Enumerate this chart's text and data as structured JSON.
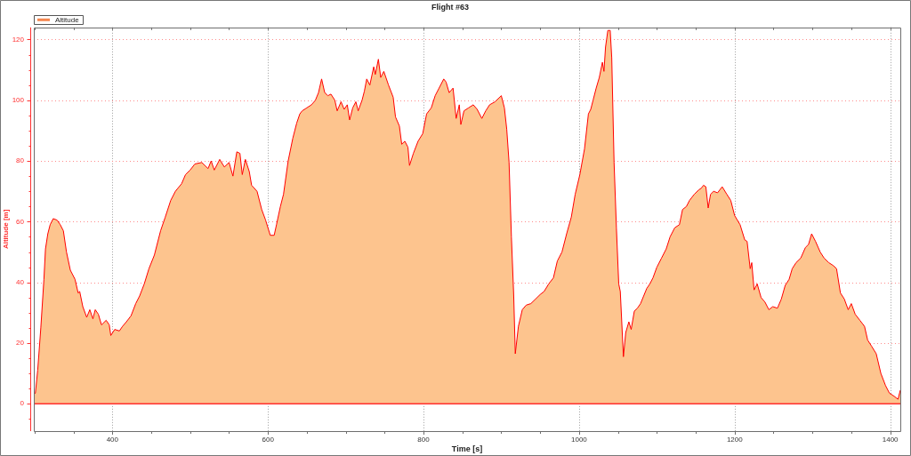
{
  "chart_data": {
    "type": "area",
    "title": "Flight #63",
    "xlabel": "Time [s]",
    "ylabel": "Altitude [m]",
    "legend": "top left",
    "grid": true,
    "xlim": [
      299,
      1413
    ],
    "ylim": [
      -9,
      124
    ],
    "xticks": [
      {
        "value": 300,
        "label": null
      },
      {
        "value": 350,
        "label": null
      },
      400,
      {
        "value": 450,
        "label": null
      },
      {
        "value": 500,
        "label": null
      },
      {
        "value": 550,
        "label": null
      },
      600,
      {
        "value": 650,
        "label": null
      },
      {
        "value": 700,
        "label": null
      },
      {
        "value": 750,
        "label": null
      },
      800,
      {
        "value": 850,
        "label": null
      },
      {
        "value": 900,
        "label": null
      },
      {
        "value": 950,
        "label": null
      },
      1000,
      {
        "value": 1050,
        "label": null
      },
      {
        "value": 1100,
        "label": null
      },
      {
        "value": 1150,
        "label": null
      },
      1200,
      {
        "value": 1250,
        "label": null
      },
      {
        "value": 1300,
        "label": null
      },
      {
        "value": 1350,
        "label": null
      },
      1400
    ],
    "yticks": [
      {
        "value": -5,
        "label": null
      },
      0,
      {
        "value": 5,
        "label": null
      },
      {
        "value": 10,
        "label": null
      },
      {
        "value": 15,
        "label": null
      },
      20,
      {
        "value": 25,
        "label": null
      },
      {
        "value": 30,
        "label": null
      },
      {
        "value": 35,
        "label": null
      },
      40,
      {
        "value": 45,
        "label": null
      },
      {
        "value": 50,
        "label": null
      },
      {
        "value": 55,
        "label": null
      },
      60,
      {
        "value": 65,
        "label": null
      },
      {
        "value": 70,
        "label": null
      },
      {
        "value": 75,
        "label": null
      },
      80,
      {
        "value": 85,
        "label": null
      },
      {
        "value": 90,
        "label": null
      },
      {
        "value": 95,
        "label": null
      },
      100,
      {
        "value": 105,
        "label": null
      },
      {
        "value": 110,
        "label": null
      },
      {
        "value": 115,
        "label": null
      },
      120
    ],
    "ref_lines": [
      {
        "axis": "y",
        "value": 0,
        "color": "#ff3030"
      }
    ],
    "x": [
      299,
      301,
      304,
      308,
      312,
      314,
      317,
      320,
      324,
      329,
      333,
      337,
      341,
      346,
      352,
      356,
      358,
      362,
      367,
      371,
      375,
      378,
      382,
      386,
      392,
      396,
      398,
      403,
      409,
      413,
      418,
      424,
      430,
      435,
      441,
      447,
      454,
      462,
      468,
      475,
      481,
      489,
      494,
      500,
      506,
      515,
      523,
      527,
      531,
      538,
      544,
      550,
      555,
      560,
      564,
      567,
      571,
      576,
      579,
      586,
      592,
      597,
      603,
      608,
      611,
      616,
      620,
      626,
      632,
      637,
      641,
      644,
      650,
      656,
      661,
      665,
      669,
      673,
      677,
      681,
      686,
      689,
      694,
      698,
      702,
      705,
      709,
      713,
      716,
      721,
      724,
      727,
      731,
      736,
      738,
      742,
      745,
      749,
      755,
      761,
      764,
      769,
      772,
      776,
      780,
      782,
      787,
      793,
      799,
      804,
      810,
      815,
      820,
      826,
      829,
      833,
      838,
      842,
      846,
      848,
      852,
      858,
      864,
      869,
      875,
      880,
      885,
      892,
      900,
      904,
      907,
      910,
      913,
      916,
      918,
      922,
      927,
      932,
      938,
      944,
      950,
      955,
      961,
      967,
      972,
      978,
      984,
      990,
      995,
      1001,
      1007,
      1012,
      1015,
      1018,
      1022,
      1026,
      1030,
      1032,
      1034,
      1037,
      1040,
      1042,
      1045,
      1048,
      1051,
      1053,
      1057,
      1060,
      1064,
      1067,
      1071,
      1075,
      1079,
      1083,
      1087,
      1091,
      1095,
      1100,
      1106,
      1112,
      1117,
      1123,
      1129,
      1133,
      1138,
      1142,
      1148,
      1154,
      1157,
      1160,
      1163,
      1166,
      1169,
      1173,
      1178,
      1184,
      1190,
      1195,
      1200,
      1207,
      1213,
      1216,
      1220,
      1222,
      1225,
      1229,
      1234,
      1239,
      1244,
      1249,
      1255,
      1260,
      1265,
      1270,
      1274,
      1279,
      1285,
      1291,
      1295,
      1299,
      1304,
      1310,
      1315,
      1321,
      1327,
      1331,
      1336,
      1341,
      1346,
      1350,
      1355,
      1361,
      1367,
      1371,
      1376,
      1382,
      1388,
      1394,
      1399,
      1405,
      1410,
      1413
    ],
    "series": [
      {
        "name": "Altitude",
        "color": "#fdc48e",
        "values": [
          3,
          3.5,
          11,
          25,
          41,
          51,
          56,
          59,
          61,
          60.5,
          59,
          57,
          50,
          44,
          41,
          36.5,
          37,
          32,
          28.5,
          31,
          28,
          31,
          29.5,
          26,
          27.5,
          26,
          22.5,
          24.5,
          24,
          25.5,
          27,
          29,
          33,
          35.5,
          39.5,
          44.5,
          49,
          57,
          61.5,
          67,
          70,
          72.5,
          75.5,
          77,
          79,
          79.5,
          77.5,
          80,
          77,
          80.5,
          78,
          79.5,
          75,
          83,
          82.5,
          75.5,
          80.5,
          76.5,
          72,
          70,
          64,
          60.5,
          55.5,
          55.5,
          59,
          65,
          69,
          80,
          87.5,
          92.5,
          95.5,
          96.5,
          97.5,
          98.5,
          100,
          102.5,
          107,
          102.5,
          101.5,
          102,
          100,
          96.5,
          99.5,
          97,
          98.5,
          93.5,
          97.5,
          99.5,
          96.5,
          100,
          103,
          107,
          105,
          111,
          108.5,
          113.5,
          107.5,
          109.5,
          105,
          101,
          94.5,
          91.5,
          85.5,
          86.5,
          84.5,
          78.5,
          82.5,
          86.5,
          89,
          95.5,
          97.5,
          101.5,
          104,
          107,
          106,
          102.5,
          104,
          94,
          98.5,
          92,
          96.5,
          97.5,
          98.5,
          97,
          94,
          96.5,
          98.5,
          99.5,
          101.5,
          97.5,
          90.5,
          79.5,
          55,
          35.5,
          16.5,
          25.5,
          31,
          32.5,
          33,
          34.5,
          36,
          37,
          39.5,
          41.5,
          47,
          50,
          56,
          61.5,
          69,
          75.5,
          84,
          95.5,
          97,
          100,
          104,
          107.5,
          112.5,
          109.5,
          117.5,
          123,
          123,
          114,
          79.5,
          58,
          39.5,
          37,
          15.5,
          23.5,
          27,
          24.5,
          30.5,
          31.5,
          33,
          35.5,
          38,
          39.5,
          41.5,
          45,
          48,
          51,
          55,
          58,
          59,
          64,
          65,
          67,
          69,
          70.5,
          71,
          72,
          71.5,
          64.5,
          69,
          70,
          69.5,
          71.5,
          69,
          67,
          62,
          59,
          54,
          53.5,
          44.5,
          46.5,
          37.5,
          39.5,
          35,
          33.5,
          31,
          32,
          31.5,
          34.5,
          39,
          41,
          44.5,
          46.5,
          48,
          51.5,
          52.5,
          56,
          53.5,
          50,
          48,
          46.5,
          45.5,
          44.5,
          36.5,
          34.5,
          31,
          33,
          29.5,
          27.5,
          25.5,
          21,
          19,
          16.5,
          10,
          6,
          3.5,
          2.5,
          1.5,
          4.5
        ]
      }
    ]
  }
}
